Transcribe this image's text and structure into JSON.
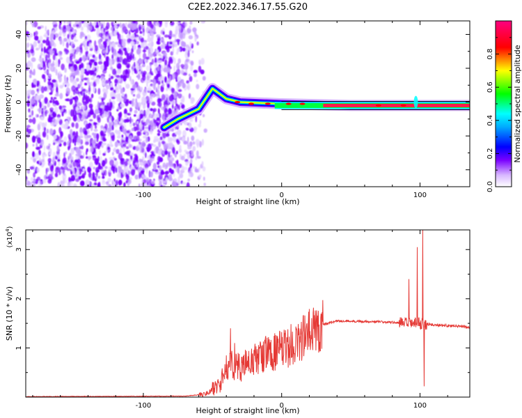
{
  "title": "C2E2.2022.346.17.55.G20",
  "chart_data": [
    {
      "type": "heatmap",
      "xlabel": "Height of straight line (km)",
      "ylabel": "Frequency (Hz)",
      "xlim": [
        -185,
        136
      ],
      "ylim": [
        -50,
        48
      ],
      "xticks": [
        -100,
        0,
        100
      ],
      "yticks": [
        -40,
        -20,
        0,
        20,
        40
      ],
      "colorbar": {
        "label": "Normalized spectral amplitude",
        "range": [
          0,
          1
        ],
        "ticks": [
          0.0,
          0.2,
          0.4,
          0.6,
          0.8
        ],
        "colormap": [
          "#ffffff",
          "#7a00ff",
          "#0000ff",
          "#00ffff",
          "#00ff00",
          "#ffff00",
          "#ff0000",
          "#ff0080"
        ]
      },
      "features": {
        "noise_region_x": [
          -185,
          -65
        ],
        "ridge": [
          {
            "x": -85,
            "y": -15
          },
          {
            "x": -75,
            "y": -10
          },
          {
            "x": -60,
            "y": -4
          },
          {
            "x": -50,
            "y": 8
          },
          {
            "x": -40,
            "y": 2
          },
          {
            "x": -30,
            "y": 0
          },
          {
            "x": 0,
            "y": -1
          },
          {
            "x": 50,
            "y": -2
          },
          {
            "x": 97,
            "y": -2
          },
          {
            "x": 136,
            "y": -2
          }
        ]
      }
    },
    {
      "type": "line",
      "xlabel": "Height of straight line (km)",
      "ylabel": "SNR (10 * v/v)",
      "yscale_label": "(x10",
      "yscale_exp": "4",
      "yscale_close": ")",
      "xlim": [
        -185,
        136
      ],
      "ylim": [
        0,
        3.4
      ],
      "xticks": [
        -100,
        0,
        100
      ],
      "yticks": [
        1,
        2,
        3
      ],
      "color": "#e53935",
      "envelope": [
        {
          "x": -185,
          "y": 0.01
        },
        {
          "x": -70,
          "y": 0.02
        },
        {
          "x": -55,
          "y": 0.06
        },
        {
          "x": -45,
          "y": 0.25
        },
        {
          "x": -38,
          "y": 0.7
        },
        {
          "x": -30,
          "y": 0.6
        },
        {
          "x": -20,
          "y": 0.75
        },
        {
          "x": -10,
          "y": 0.9
        },
        {
          "x": 0,
          "y": 0.95
        },
        {
          "x": 10,
          "y": 1.1
        },
        {
          "x": 20,
          "y": 1.3
        },
        {
          "x": 30,
          "y": 1.48
        },
        {
          "x": 40,
          "y": 1.55
        },
        {
          "x": 60,
          "y": 1.54
        },
        {
          "x": 80,
          "y": 1.52
        },
        {
          "x": 90,
          "y": 1.5
        },
        {
          "x": 100,
          "y": 1.5
        },
        {
          "x": 110,
          "y": 1.47
        },
        {
          "x": 136,
          "y": 1.43
        }
      ],
      "spikes": [
        {
          "x": -37,
          "y": 1.4
        },
        {
          "x": -34,
          "y": 1.1
        },
        {
          "x": 92,
          "y": 2.4
        },
        {
          "x": 98,
          "y": 3.05
        },
        {
          "x": 102,
          "y": 3.4
        },
        {
          "x": 103,
          "y": 0.22
        }
      ]
    }
  ]
}
